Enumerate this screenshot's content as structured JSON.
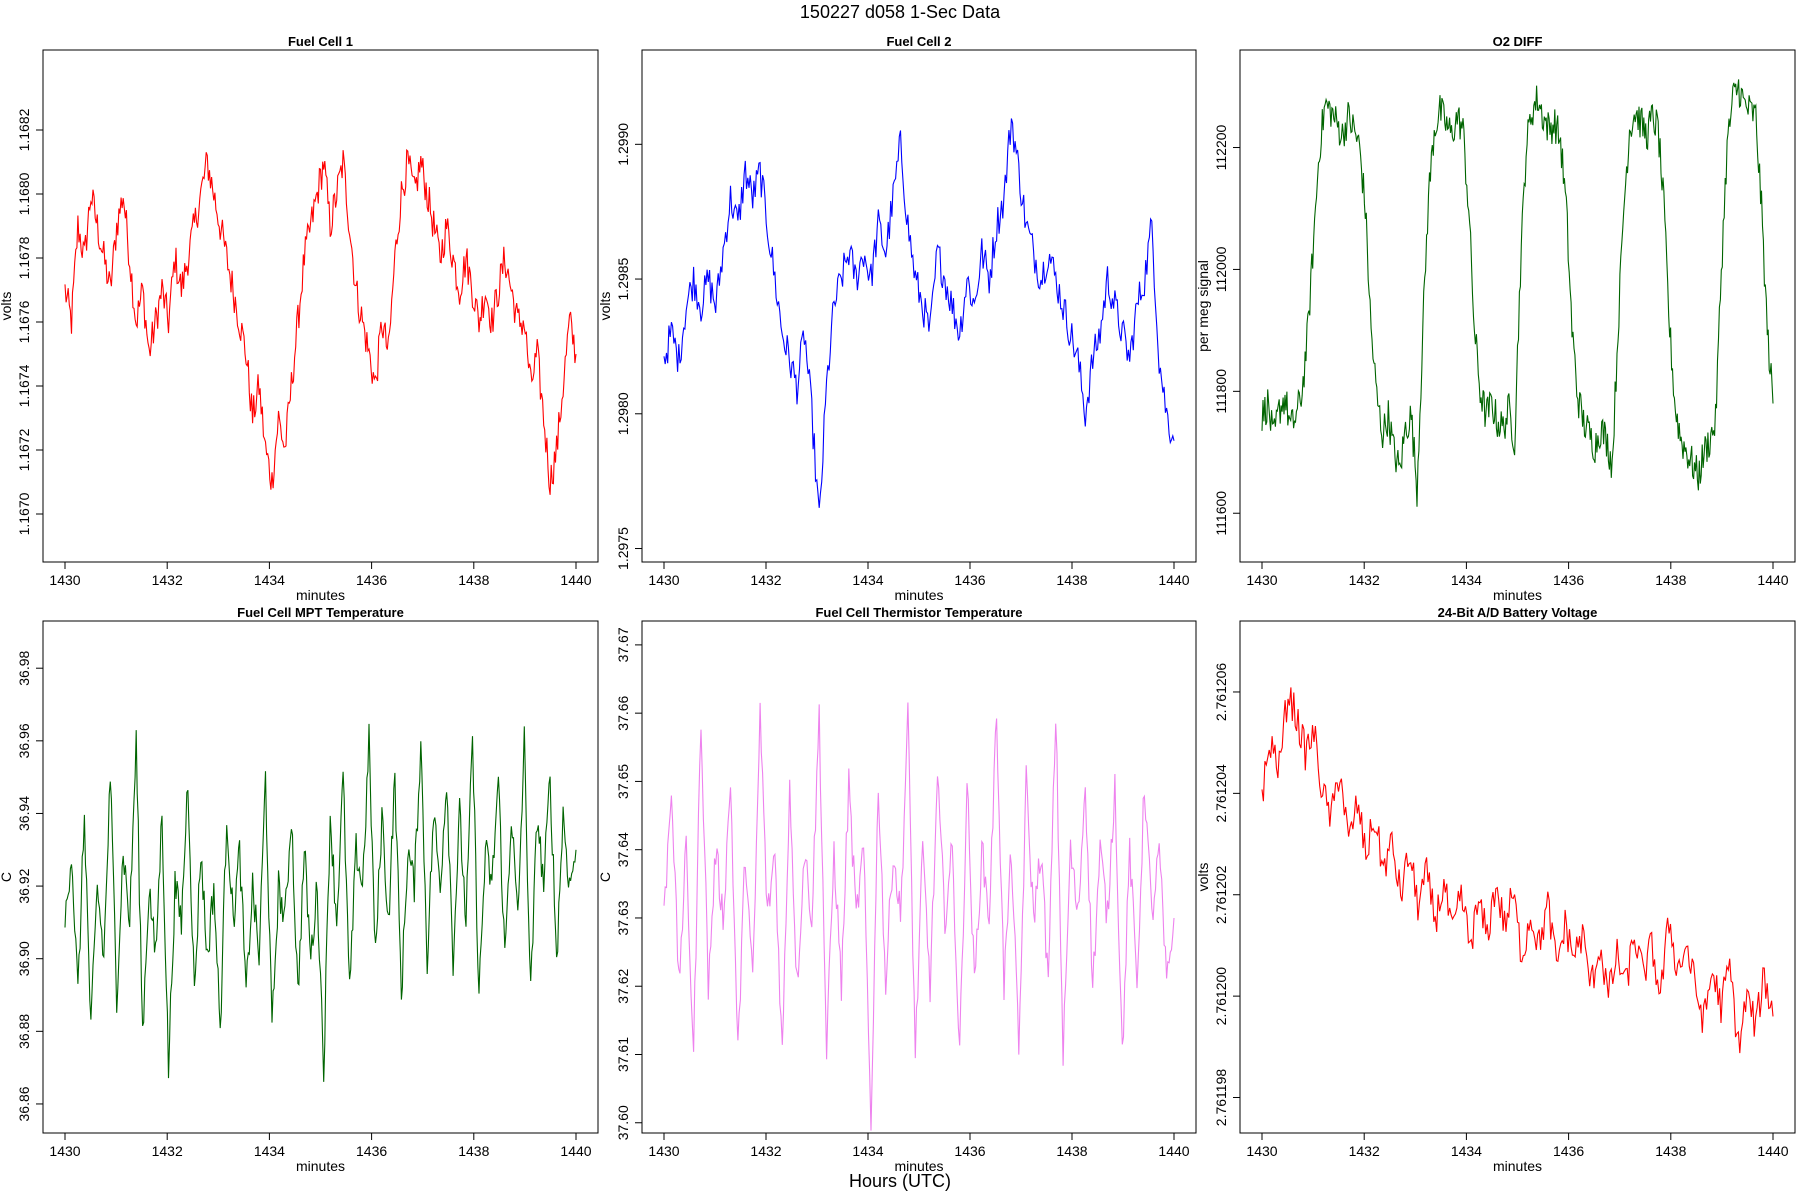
{
  "page": {
    "title": "150227   d058   1-Sec Data",
    "footer_label": "Hours (UTC)"
  },
  "chart_data": [
    {
      "type": "line",
      "title": "Fuel Cell 1",
      "xlabel": "minutes",
      "ylabel": "volts",
      "color": "#ff0000",
      "xlim": [
        1430,
        1440
      ],
      "ylim": [
        1.16685,
        1.16845
      ],
      "xticks": [
        1430,
        1432,
        1434,
        1436,
        1438,
        1440
      ],
      "yticks": [
        1.167,
        1.1672,
        1.1674,
        1.1676,
        1.1678,
        1.168,
        1.1682
      ],
      "ytick_labels": [
        "1.1670",
        "1.1672",
        "1.1674",
        "1.1676",
        "1.1678",
        "1.1680",
        "1.1682"
      ],
      "series": [
        {
          "name": "Fuel Cell 1",
          "x_start": 1430,
          "x_end": 1440,
          "values": [
            1.1677,
            1.1676,
            1.1679,
            1.1678,
            1.168,
            1.1679,
            1.1678,
            1.1677,
            1.1679,
            1.168,
            1.1678,
            1.1676,
            1.1677,
            1.1675,
            1.1676,
            1.1677,
            1.1676,
            1.1678,
            1.1677,
            1.1678,
            1.1679,
            1.168,
            1.1681,
            1.168,
            1.1679,
            1.1678,
            1.1677,
            1.1676,
            1.1675,
            1.1673,
            1.1674,
            1.1672,
            1.1671,
            1.1673,
            1.1672,
            1.1674,
            1.1676,
            1.1678,
            1.1679,
            1.168,
            1.1681,
            1.1679,
            1.168,
            1.1681,
            1.1679,
            1.1677,
            1.1676,
            1.1675,
            1.1674,
            1.1676,
            1.1675,
            1.1678,
            1.168,
            1.1681,
            1.168,
            1.1681,
            1.168,
            1.1679,
            1.1678,
            1.1679,
            1.1678,
            1.1677,
            1.1678,
            1.1677,
            1.1676,
            1.1677,
            1.1676,
            1.1677,
            1.1678,
            1.1677,
            1.1676,
            1.1676,
            1.1674,
            1.1675,
            1.1673,
            1.1671,
            1.1672,
            1.1674,
            1.1676,
            1.1675
          ]
        }
      ]
    },
    {
      "type": "line",
      "title": "Fuel Cell 2",
      "xlabel": "minutes",
      "ylabel": "volts",
      "color": "#0000ff",
      "xlim": [
        1430,
        1440
      ],
      "ylim": [
        1.29745,
        1.29935
      ],
      "xticks": [
        1430,
        1432,
        1434,
        1436,
        1438,
        1440
      ],
      "yticks": [
        1.2975,
        1.298,
        1.2985,
        1.299
      ],
      "ytick_labels": [
        "1.2975",
        "1.2980",
        "1.2985",
        "1.2990"
      ],
      "series": [
        {
          "name": "Fuel Cell 2",
          "x_start": 1430,
          "x_end": 1440,
          "values": [
            1.2982,
            1.2983,
            1.2982,
            1.2984,
            1.2985,
            1.2984,
            1.2985,
            1.2984,
            1.2986,
            1.2988,
            1.2987,
            1.2989,
            1.2988,
            1.2989,
            1.2987,
            1.2985,
            1.2983,
            1.2982,
            1.2981,
            1.2983,
            1.298,
            1.2976,
            1.2981,
            1.2984,
            1.2985,
            1.2986,
            1.2985,
            1.2986,
            1.2985,
            1.2987,
            1.2986,
            1.2988,
            1.299,
            1.2987,
            1.2985,
            1.2984,
            1.2983,
            1.2986,
            1.2985,
            1.2984,
            1.2983,
            1.2985,
            1.2984,
            1.2986,
            1.2985,
            1.2987,
            1.2988,
            1.2991,
            1.2989,
            1.2987,
            1.2986,
            1.2985,
            1.2986,
            1.2985,
            1.2984,
            1.2983,
            1.2982,
            1.298,
            1.2982,
            1.2983,
            1.2985,
            1.2984,
            1.2983,
            1.2982,
            1.2984,
            1.2985,
            1.2987,
            1.2982,
            1.298,
            1.2979
          ]
        }
      ]
    },
    {
      "type": "line",
      "title": "O2 DIFF",
      "xlabel": "minutes",
      "ylabel": "per meg signal",
      "color": "#006400",
      "xlim": [
        1430,
        1440
      ],
      "ylim": [
        111520,
        112360
      ],
      "xticks": [
        1430,
        1432,
        1434,
        1436,
        1438,
        1440
      ],
      "yticks": [
        111600,
        111800,
        112000,
        112200
      ],
      "ytick_labels": [
        "111600",
        "111800",
        "112000",
        "112200"
      ],
      "series": [
        {
          "name": "O2 DIFF",
          "x_start": 1430,
          "x_end": 1440,
          "values": [
            111760,
            111780,
            111720,
            111770,
            111790,
            111740,
            111760,
            111800,
            111900,
            112050,
            112200,
            112270,
            112260,
            112240,
            112220,
            112250,
            112230,
            112200,
            112100,
            111900,
            111790,
            111730,
            111760,
            111700,
            111670,
            111740,
            111760,
            111640,
            111900,
            112120,
            112230,
            112260,
            112240,
            112220,
            112250,
            112230,
            112100,
            111900,
            111800,
            111760,
            111780,
            111750,
            111740,
            111770,
            111720,
            112000,
            112200,
            112260,
            112280,
            112250,
            112230,
            112240,
            112210,
            112100,
            111900,
            111790,
            111750,
            111730,
            111710,
            111740,
            111720,
            111680,
            111900,
            112100,
            112230,
            112260,
            112240,
            112220,
            112250,
            112230,
            112100,
            111900,
            111770,
            111720,
            111700,
            111680,
            111660,
            111700,
            111720,
            111750,
            112000,
            112200,
            112280,
            112300,
            112270,
            112260,
            112250,
            112100,
            111900,
            111780
          ]
        }
      ]
    },
    {
      "type": "line",
      "title": "Fuel Cell MPT Temperature",
      "xlabel": "minutes",
      "ylabel": "C",
      "color": "#006400",
      "xlim": [
        1430,
        1440
      ],
      "ylim": [
        36.852,
        36.993
      ],
      "xticks": [
        1430,
        1432,
        1434,
        1436,
        1438,
        1440
      ],
      "yticks": [
        36.86,
        36.88,
        36.9,
        36.92,
        36.94,
        36.96,
        36.98
      ],
      "ytick_labels": [
        "36.86",
        "36.88",
        "36.90",
        "36.92",
        "36.94",
        "36.96",
        "36.98"
      ],
      "series": [
        {
          "name": "Fuel Cell MPT Temperature",
          "x_start": 1430,
          "x_end": 1440,
          "values": [
            36.91,
            36.93,
            36.89,
            36.94,
            36.88,
            36.92,
            36.9,
            36.95,
            36.89,
            36.93,
            36.91,
            36.96,
            36.88,
            36.92,
            36.9,
            36.94,
            36.87,
            36.92,
            36.91,
            36.95,
            36.89,
            36.93,
            36.9,
            36.92,
            36.88,
            36.94,
            36.91,
            36.93,
            36.89,
            36.92,
            36.9,
            36.95,
            36.88,
            36.92,
            36.91,
            36.94,
            36.89,
            36.93,
            36.9,
            36.92,
            36.87,
            36.94,
            36.91,
            36.95,
            36.89,
            36.93,
            36.92,
            36.96,
            36.9,
            36.94,
            36.91,
            36.95,
            36.89,
            36.93,
            36.92,
            36.96,
            36.9,
            36.94,
            36.92,
            36.95,
            36.9,
            36.94,
            36.91,
            36.96,
            36.89,
            36.93,
            36.92,
            36.95,
            36.9,
            36.94,
            36.91,
            36.96,
            36.89,
            36.94,
            36.92,
            36.95,
            36.9,
            36.94,
            36.92,
            36.93
          ]
        }
      ]
    },
    {
      "type": "line",
      "title": "Fuel Cell Thermistor Temperature",
      "xlabel": "minutes",
      "ylabel": "C",
      "color": "#ee82ee",
      "xlim": [
        1430,
        1440
      ],
      "ylim": [
        37.5985,
        37.6735
      ],
      "xticks": [
        1430,
        1432,
        1434,
        1436,
        1438,
        1440
      ],
      "yticks": [
        37.6,
        37.61,
        37.62,
        37.63,
        37.64,
        37.65,
        37.66,
        37.67
      ],
      "ytick_labels": [
        "37.60",
        "37.61",
        "37.62",
        "37.63",
        "37.64",
        "37.65",
        "37.66",
        "37.67"
      ],
      "series": [
        {
          "name": "Fuel Cell Thermistor Temperature",
          "x_start": 1430,
          "x_end": 1440,
          "values": [
            37.63,
            37.65,
            37.62,
            37.64,
            37.61,
            37.66,
            37.62,
            37.64,
            37.63,
            37.65,
            37.61,
            37.64,
            37.62,
            37.66,
            37.63,
            37.64,
            37.61,
            37.65,
            37.62,
            37.64,
            37.63,
            37.66,
            37.61,
            37.64,
            37.62,
            37.65,
            37.63,
            37.64,
            37.6,
            37.65,
            37.62,
            37.64,
            37.63,
            37.66,
            37.61,
            37.64,
            37.62,
            37.65,
            37.63,
            37.64,
            37.61,
            37.65,
            37.62,
            37.64,
            37.63,
            37.66,
            37.62,
            37.64,
            37.61,
            37.65,
            37.63,
            37.64,
            37.62,
            37.66,
            37.61,
            37.64,
            37.63,
            37.65,
            37.62,
            37.64,
            37.63,
            37.65,
            37.61,
            37.64,
            37.62,
            37.65,
            37.63,
            37.64,
            37.62,
            37.63
          ]
        }
      ]
    },
    {
      "type": "line",
      "title": "24-Bit A/D Battery Voltage",
      "xlabel": "minutes",
      "ylabel": "volts",
      "color": "#ff0000",
      "xlim": [
        1430,
        1440
      ],
      "ylim": [
        2.7611973,
        2.7612074
      ],
      "xticks": [
        1430,
        1432,
        1434,
        1436,
        1438,
        1440
      ],
      "yticks": [
        2.761198,
        2.7612,
        2.761202,
        2.761204,
        2.761206
      ],
      "ytick_labels": [
        "2.761198",
        "2.761200",
        "2.761202",
        "2.761204",
        "2.761206"
      ],
      "series": [
        {
          "name": "24-Bit A/D Battery Voltage",
          "x_start": 1430,
          "x_end": 1440,
          "values": [
            2.761204,
            2.761205,
            2.7612045,
            2.761206,
            2.7612055,
            2.7612048,
            2.7612052,
            2.761204,
            2.7612035,
            2.7612045,
            2.761203,
            2.7612038,
            2.7612028,
            2.7612035,
            2.7612025,
            2.761203,
            2.761202,
            2.7612028,
            2.7612018,
            2.7612024,
            2.7612015,
            2.7612022,
            2.7612012,
            2.761202,
            2.761201,
            2.7612018,
            2.7612012,
            2.7612022,
            2.7612014,
            2.761202,
            2.7612008,
            2.7612016,
            2.761201,
            2.7612018,
            2.7612006,
            2.7612014,
            2.7612008,
            2.7612012,
            2.7612002,
            2.761201,
            2.7612,
            2.7612008,
            2.7612002,
            2.7612012,
            2.7612004,
            2.761201,
            2.7612,
            2.7612015,
            2.7612005,
            2.761201,
            2.7612002,
            2.7611995,
            2.7612005,
            2.7611998,
            2.7612006,
            2.761199,
            2.7612,
            2.7611994,
            2.7612004,
            2.7611996
          ]
        }
      ]
    }
  ]
}
